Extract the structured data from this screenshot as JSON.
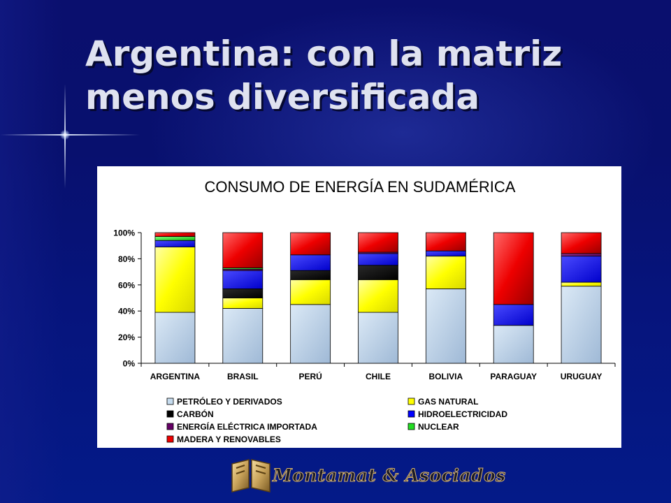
{
  "slide": {
    "title_line1": "Argentina: con la matriz",
    "title_line2": "menos diversificada",
    "logo_text": "Montamat & Asociados"
  },
  "chart_data": {
    "type": "bar",
    "stacked": "percent",
    "title": "CONSUMO DE ENERGÍA EN SUDAMÉRICA",
    "categories": [
      "ARGENTINA",
      "BRASIL",
      "PERÚ",
      "CHILE",
      "BOLIVIA",
      "PARAGUAY",
      "URUGUAY"
    ],
    "ylim": [
      0,
      100
    ],
    "yticks": [
      "0%",
      "20%",
      "40%",
      "60%",
      "80%",
      "100%"
    ],
    "series": [
      {
        "name": "PETRÓLEO Y DERIVADOS",
        "color": "#c6dcef",
        "values": [
          39,
          42,
          45,
          39,
          57,
          29,
          59
        ]
      },
      {
        "name": "GAS NATURAL",
        "color": "#ffff00",
        "values": [
          50,
          8,
          19,
          25,
          25,
          0,
          3
        ]
      },
      {
        "name": "CARBÓN",
        "color": "#000000",
        "values": [
          0,
          7,
          7,
          11,
          0,
          0,
          0
        ]
      },
      {
        "name": "HIDROELECTRICIDAD",
        "color": "#0000ff",
        "values": [
          5,
          14,
          12,
          9,
          4,
          16,
          20
        ]
      },
      {
        "name": "ENERGÍA ELÉCTRICA IMPORTADA",
        "color": "#660066",
        "values": [
          0,
          1,
          0,
          1,
          0,
          0,
          2
        ]
      },
      {
        "name": "NUCLEAR",
        "color": "#22dd22",
        "values": [
          3,
          1,
          0,
          0,
          0,
          0,
          0
        ]
      },
      {
        "name": "MADERA Y RENOVABLES",
        "color": "#ee0000",
        "values": [
          3,
          27,
          17,
          15,
          14,
          55,
          16
        ]
      }
    ],
    "legend": "bottom",
    "grid": false
  }
}
